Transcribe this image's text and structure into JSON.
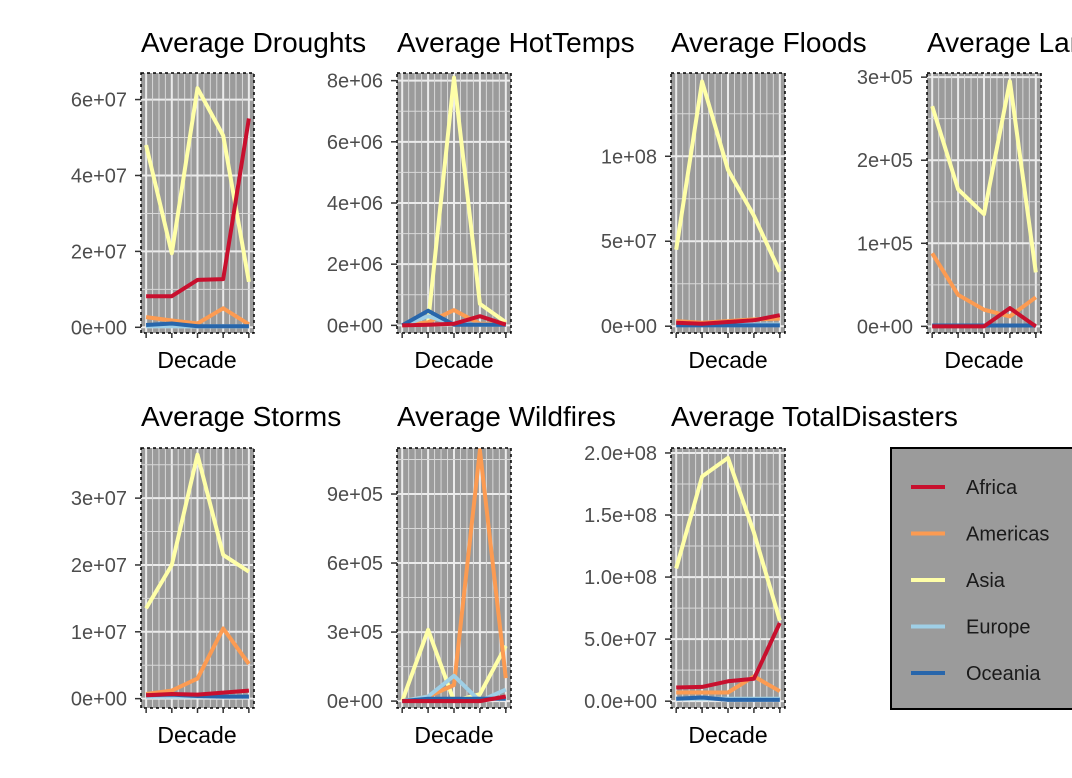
{
  "chart_data": [
    {
      "type": "line",
      "title": "Average Droughts",
      "xlabel": "Decade",
      "ylabel": "",
      "x": [
        1,
        2,
        3,
        4,
        5
      ],
      "ylim": [
        -1500000,
        67000000
      ],
      "yticks": [
        0,
        20000000,
        40000000,
        60000000
      ],
      "ytick_labels": [
        "0e+00",
        "2e+07",
        "4e+07",
        "6e+07"
      ],
      "series": [
        {
          "key": "africa",
          "values": [
            8200000,
            8200000,
            12500000,
            12700000,
            55000000
          ]
        },
        {
          "key": "americas",
          "values": [
            2700000,
            1800000,
            1000000,
            5000000,
            800000
          ]
        },
        {
          "key": "asia",
          "values": [
            48000000,
            19500000,
            63000000,
            50500000,
            12000000
          ]
        },
        {
          "key": "europe",
          "values": [
            300000,
            300000,
            200000,
            300000,
            200000
          ]
        },
        {
          "key": "oceania",
          "values": [
            600000,
            1000000,
            300000,
            300000,
            300000
          ]
        }
      ]
    },
    {
      "type": "line",
      "title": "Average HotTemps",
      "xlabel": "Decade",
      "ylabel": "",
      "x": [
        1,
        2,
        3,
        4,
        5
      ],
      "ylim": [
        -250000,
        8250000
      ],
      "yticks": [
        0,
        2000000,
        4000000,
        6000000,
        8000000
      ],
      "ytick_labels": [
        "0e+00",
        "2e+06",
        "4e+06",
        "6e+06",
        "8e+06"
      ],
      "series": [
        {
          "key": "africa",
          "values": [
            0,
            20000,
            50000,
            300000,
            20000
          ]
        },
        {
          "key": "americas",
          "values": [
            0,
            100000,
            500000,
            50000,
            50000
          ]
        },
        {
          "key": "asia",
          "values": [
            0,
            100000,
            8100000,
            700000,
            100000
          ]
        },
        {
          "key": "europe",
          "values": [
            0,
            300000,
            50000,
            20000,
            20000
          ]
        },
        {
          "key": "oceania",
          "values": [
            0,
            480000,
            20000,
            20000,
            20000
          ]
        }
      ]
    },
    {
      "type": "line",
      "title": "Average Floods",
      "xlabel": "Decade",
      "ylabel": "",
      "x": [
        1,
        2,
        3,
        4,
        5
      ],
      "ylim": [
        -4000000,
        149000000
      ],
      "yticks": [
        0,
        50000000,
        100000000
      ],
      "ytick_labels": [
        "0e+00",
        "5e+07",
        "1e+08"
      ],
      "series": [
        {
          "key": "africa",
          "values": [
            2000000,
            1500000,
            2500000,
            3500000,
            6500000
          ]
        },
        {
          "key": "americas",
          "values": [
            3000000,
            2000000,
            3000000,
            4000000,
            4500000
          ]
        },
        {
          "key": "asia",
          "values": [
            45000000,
            144000000,
            92000000,
            65000000,
            32000000
          ]
        },
        {
          "key": "europe",
          "values": [
            1000000,
            1000000,
            1000000,
            1000000,
            1000000
          ]
        },
        {
          "key": "oceania",
          "values": [
            500000,
            500000,
            500000,
            500000,
            500000
          ]
        }
      ]
    },
    {
      "type": "line",
      "title": "Average Landslides",
      "xlabel": "Decade",
      "ylabel": "",
      "x": [
        1,
        2,
        3,
        4,
        5
      ],
      "ylim": [
        -8000,
        305000
      ],
      "yticks": [
        0,
        100000,
        200000,
        300000
      ],
      "ytick_labels": [
        "0e+00",
        "1e+05",
        "2e+05",
        "3e+05"
      ],
      "series": [
        {
          "key": "africa",
          "values": [
            0,
            0,
            0,
            22000,
            0
          ]
        },
        {
          "key": "americas",
          "values": [
            88000,
            38000,
            20000,
            12000,
            35000
          ]
        },
        {
          "key": "asia",
          "values": [
            265000,
            165000,
            135000,
            295000,
            65000
          ]
        },
        {
          "key": "europe",
          "values": [
            1000,
            1000,
            1000,
            1000,
            1000
          ]
        },
        {
          "key": "oceania",
          "values": [
            1000,
            1000,
            1000,
            1000,
            1000
          ]
        }
      ]
    },
    {
      "type": "line",
      "title": "Average Storms",
      "xlabel": "Decade",
      "ylabel": "",
      "x": [
        1,
        2,
        3,
        4,
        5
      ],
      "ylim": [
        -1400000,
        37500000
      ],
      "yticks": [
        0,
        10000000,
        20000000,
        30000000
      ],
      "ytick_labels": [
        "0e+00",
        "1e+07",
        "2e+07",
        "3e+07"
      ],
      "series": [
        {
          "key": "africa",
          "values": [
            500000,
            700000,
            600000,
            900000,
            1200000
          ]
        },
        {
          "key": "americas",
          "values": [
            700000,
            1200000,
            3000000,
            10500000,
            5200000
          ]
        },
        {
          "key": "asia",
          "values": [
            13500000,
            20000000,
            36500000,
            21500000,
            19000000
          ]
        },
        {
          "key": "europe",
          "values": [
            300000,
            300000,
            300000,
            300000,
            300000
          ]
        },
        {
          "key": "oceania",
          "values": [
            500000,
            600000,
            400000,
            300000,
            300000
          ]
        }
      ]
    },
    {
      "type": "line",
      "title": "Average Wildfires",
      "xlabel": "Decade",
      "ylabel": "",
      "x": [
        1,
        2,
        3,
        4,
        5
      ],
      "ylim": [
        -30000,
        1100000
      ],
      "yticks": [
        0,
        300000,
        600000,
        900000
      ],
      "ytick_labels": [
        "0e+00",
        "3e+05",
        "6e+05",
        "9e+05"
      ],
      "series": [
        {
          "key": "africa",
          "values": [
            0,
            0,
            0,
            0,
            20000
          ]
        },
        {
          "key": "americas",
          "values": [
            0,
            20000,
            70000,
            1090000,
            100000
          ]
        },
        {
          "key": "asia",
          "values": [
            0,
            310000,
            0,
            30000,
            240000
          ]
        },
        {
          "key": "europe",
          "values": [
            0,
            20000,
            110000,
            0,
            50000
          ]
        },
        {
          "key": "oceania",
          "values": [
            0,
            10000,
            10000,
            10000,
            10000
          ]
        }
      ]
    },
    {
      "type": "line",
      "title": "Average TotalDisasters",
      "xlabel": "Decade",
      "ylabel": "",
      "x": [
        1,
        2,
        3,
        4,
        5
      ],
      "ylim": [
        -5500000,
        204000000
      ],
      "yticks": [
        0,
        50000000,
        100000000,
        150000000,
        200000000
      ],
      "ytick_labels": [
        "0.0e+00",
        "5.0e+07",
        "1.0e+08",
        "1.5e+08",
        "2.0e+08"
      ],
      "series": [
        {
          "key": "africa",
          "values": [
            11000000,
            11500000,
            16000000,
            18000000,
            63000000
          ]
        },
        {
          "key": "americas",
          "values": [
            7000000,
            7000000,
            7000000,
            20000000,
            8000000
          ]
        },
        {
          "key": "asia",
          "values": [
            107000000,
            181000000,
            196000000,
            136000000,
            65000000
          ]
        },
        {
          "key": "europe",
          "values": [
            2000000,
            2000000,
            2000000,
            2000000,
            2000000
          ]
        },
        {
          "key": "oceania",
          "values": [
            2000000,
            3000000,
            1000000,
            1000000,
            1000000
          ]
        }
      ]
    }
  ],
  "legend": {
    "placement": "bottom-right",
    "entries": [
      {
        "key": "africa",
        "label": "Africa",
        "color": "#c8102e"
      },
      {
        "key": "americas",
        "label": "Americas",
        "color": "#fc9b52"
      },
      {
        "key": "asia",
        "label": "Asia",
        "color": "#ffffa8"
      },
      {
        "key": "europe",
        "label": "Europe",
        "color": "#9fcfe6"
      },
      {
        "key": "oceania",
        "label": "Oceania",
        "color": "#2866ab"
      }
    ]
  },
  "colors": {
    "panel_bg": "#9b9b9b",
    "grid_major": "#ebebeb",
    "grid_minor": "#d8d8d8",
    "tick_text": "#4d4d4d"
  }
}
